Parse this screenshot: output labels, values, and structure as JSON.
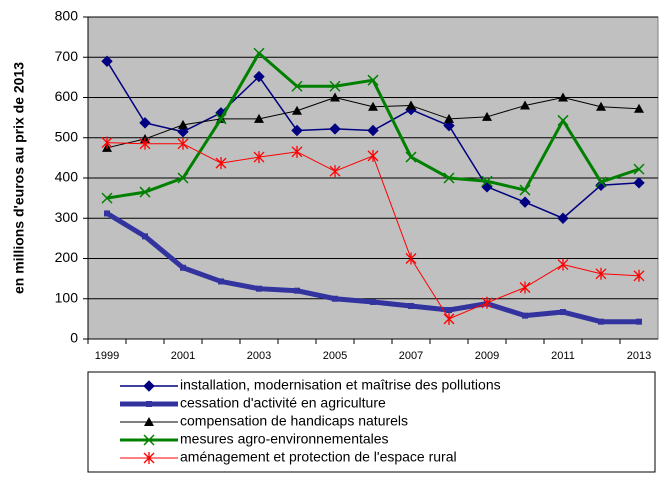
{
  "chart_data": {
    "type": "line",
    "y_label": "en millions d'euros au prix de 2013",
    "categories": [
      "1999",
      null,
      "2001",
      null,
      "2003",
      null,
      "2005",
      null,
      "2007",
      null,
      "2009",
      null,
      "2011",
      null,
      "2013"
    ],
    "ylim": [
      0,
      800
    ],
    "yticks": [
      0,
      100,
      200,
      300,
      400,
      500,
      600,
      700,
      800
    ],
    "grid": true,
    "series": [
      {
        "name": "installation, modernisation et maîtrise des pollutions",
        "color": "#000080",
        "values": [
          690,
          537,
          515,
          562,
          652,
          518,
          522,
          518,
          570,
          530,
          378,
          340,
          300,
          382,
          388
        ]
      },
      {
        "name": "cessation d'activité en agriculture",
        "color": "#3333a0",
        "values": [
          312,
          255,
          177,
          143,
          125,
          120,
          100,
          92,
          82,
          72,
          88,
          58,
          67,
          43,
          43
        ]
      },
      {
        "name": "compensation de handicaps naturels",
        "color": "#000000",
        "values": [
          475,
          497,
          532,
          547,
          547,
          567,
          600,
          577,
          580,
          547,
          552,
          580,
          600,
          577,
          572
        ]
      },
      {
        "name": "mesures agro-environnementales",
        "color": "#008000",
        "values": [
          350,
          365,
          400,
          547,
          710,
          628,
          628,
          643,
          452,
          400,
          392,
          370,
          543,
          390,
          422
        ]
      },
      {
        "name": "aménagement et protection de l'espace rural",
        "color": "#ff0000",
        "values": [
          488,
          485,
          485,
          437,
          452,
          465,
          417,
          455,
          200,
          50,
          90,
          128,
          185,
          162,
          157
        ]
      }
    ]
  }
}
